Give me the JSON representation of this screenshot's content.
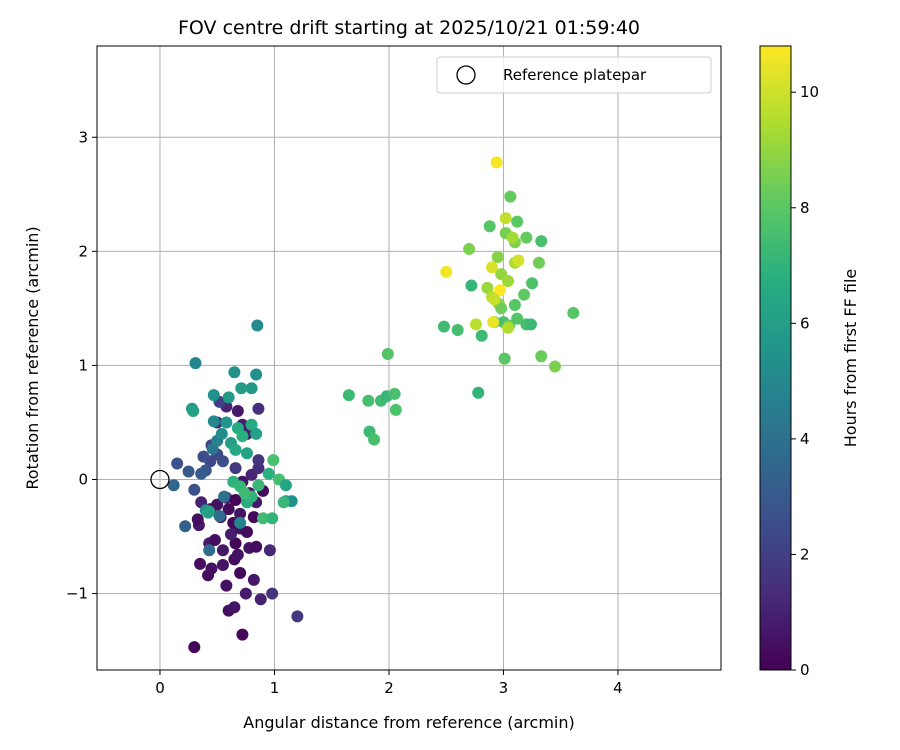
{
  "chart_data": {
    "type": "scatter",
    "title": "FOV centre drift starting at 2025/10/21 01:59:40",
    "xlabel": "Angular distance from reference (arcmin)",
    "ylabel": "Rotation from reference (arcmin)",
    "xlim": [
      -0.55,
      4.9
    ],
    "ylim": [
      -1.67,
      3.8
    ],
    "xticks": [
      0,
      1,
      2,
      3,
      4
    ],
    "yticks": [
      -1,
      0,
      1,
      2,
      3
    ],
    "grid": true,
    "legend": {
      "placement": "top-right",
      "entries": [
        "Reference platepar"
      ]
    },
    "reference_point": {
      "label": "Reference platepar",
      "x": 0,
      "y": 0
    },
    "colorbar": {
      "label": "Hours from first FF file",
      "colormap": "viridis",
      "range": [
        0,
        10.8
      ],
      "ticks": [
        0,
        2,
        4,
        6,
        8,
        10
      ]
    },
    "points": [
      {
        "x": 0.3,
        "y": -1.47,
        "h": 0.1
      },
      {
        "x": 0.72,
        "y": -1.36,
        "h": 0.2
      },
      {
        "x": 0.6,
        "y": -1.15,
        "h": 0.4
      },
      {
        "x": 0.65,
        "y": -1.12,
        "h": 0.6
      },
      {
        "x": 0.88,
        "y": -1.05,
        "h": 1.0
      },
      {
        "x": 0.75,
        "y": -1.0,
        "h": 0.8
      },
      {
        "x": 0.98,
        "y": -1.0,
        "h": 1.6
      },
      {
        "x": 1.2,
        "y": -1.2,
        "h": 1.8
      },
      {
        "x": 0.58,
        "y": -0.93,
        "h": 0.5
      },
      {
        "x": 0.82,
        "y": -0.88,
        "h": 0.7
      },
      {
        "x": 0.42,
        "y": -0.84,
        "h": 0.3
      },
      {
        "x": 0.45,
        "y": -0.78,
        "h": 0.5
      },
      {
        "x": 0.7,
        "y": -0.82,
        "h": 0.2
      },
      {
        "x": 0.35,
        "y": -0.74,
        "h": 0.4
      },
      {
        "x": 0.55,
        "y": -0.75,
        "h": 0.6
      },
      {
        "x": 0.65,
        "y": -0.7,
        "h": 0.3
      },
      {
        "x": 0.68,
        "y": -0.66,
        "h": 0.5
      },
      {
        "x": 0.55,
        "y": -0.62,
        "h": 0.7
      },
      {
        "x": 0.43,
        "y": -0.56,
        "h": 0.8
      },
      {
        "x": 0.48,
        "y": -0.53,
        "h": 0.4
      },
      {
        "x": 0.66,
        "y": -0.56,
        "h": 0.2
      },
      {
        "x": 0.78,
        "y": -0.6,
        "h": 0.6
      },
      {
        "x": 0.84,
        "y": -0.59,
        "h": 0.3
      },
      {
        "x": 0.96,
        "y": -0.62,
        "h": 1.2
      },
      {
        "x": 0.62,
        "y": -0.48,
        "h": 0.9
      },
      {
        "x": 0.7,
        "y": -0.43,
        "h": 0.5
      },
      {
        "x": 0.76,
        "y": -0.46,
        "h": 0.3
      },
      {
        "x": 0.64,
        "y": -0.38,
        "h": 0.2
      },
      {
        "x": 0.34,
        "y": -0.4,
        "h": 0.7
      },
      {
        "x": 0.33,
        "y": -0.35,
        "h": 0.4
      },
      {
        "x": 0.53,
        "y": -0.33,
        "h": 0.8
      },
      {
        "x": 0.6,
        "y": -0.26,
        "h": 0.3
      },
      {
        "x": 0.7,
        "y": -0.3,
        "h": 0.6
      },
      {
        "x": 0.82,
        "y": -0.33,
        "h": 0.2
      },
      {
        "x": 0.5,
        "y": -0.22,
        "h": 0.5
      },
      {
        "x": 0.58,
        "y": -0.16,
        "h": 0.9
      },
      {
        "x": 0.36,
        "y": -0.2,
        "h": 1.0
      },
      {
        "x": 0.44,
        "y": -0.26,
        "h": 0.4
      },
      {
        "x": 0.66,
        "y": -0.18,
        "h": 0.1
      },
      {
        "x": 0.78,
        "y": -0.12,
        "h": 0.5
      },
      {
        "x": 0.84,
        "y": -0.2,
        "h": 0.8
      },
      {
        "x": 0.9,
        "y": -0.1,
        "h": 0.3
      },
      {
        "x": 0.72,
        "y": -0.02,
        "h": 0.6
      },
      {
        "x": 0.8,
        "y": 0.04,
        "h": 1.1
      },
      {
        "x": 0.86,
        "y": 0.1,
        "h": 1.4
      },
      {
        "x": 0.66,
        "y": 0.1,
        "h": 1.8
      },
      {
        "x": 0.86,
        "y": 0.17,
        "h": 1.6
      },
      {
        "x": 0.76,
        "y": 0.4,
        "h": 0.8
      },
      {
        "x": 0.72,
        "y": 0.48,
        "h": 0.9
      },
      {
        "x": 0.58,
        "y": 0.64,
        "h": 1.2
      },
      {
        "x": 0.68,
        "y": 0.6,
        "h": 0.7
      },
      {
        "x": 0.86,
        "y": 0.62,
        "h": 1.5
      },
      {
        "x": 0.52,
        "y": 0.68,
        "h": 2.0
      },
      {
        "x": 0.5,
        "y": 0.5,
        "h": 1.3
      },
      {
        "x": 0.45,
        "y": 0.3,
        "h": 2.2
      },
      {
        "x": 0.5,
        "y": 0.22,
        "h": 2.4
      },
      {
        "x": 0.55,
        "y": 0.16,
        "h": 2.6
      },
      {
        "x": 0.44,
        "y": 0.16,
        "h": 2.3
      },
      {
        "x": 0.38,
        "y": 0.2,
        "h": 2.5
      },
      {
        "x": 0.4,
        "y": 0.08,
        "h": 2.9
      },
      {
        "x": 0.36,
        "y": 0.05,
        "h": 3.1
      },
      {
        "x": 0.15,
        "y": 0.14,
        "h": 2.8
      },
      {
        "x": 0.25,
        "y": 0.07,
        "h": 3.0
      },
      {
        "x": 0.12,
        "y": -0.05,
        "h": 3.6
      },
      {
        "x": 0.3,
        "y": -0.09,
        "h": 2.7
      },
      {
        "x": 0.22,
        "y": -0.41,
        "h": 3.3
      },
      {
        "x": 0.43,
        "y": -0.62,
        "h": 3.8
      },
      {
        "x": 0.52,
        "y": -0.32,
        "h": 3.7
      },
      {
        "x": 0.56,
        "y": -0.15,
        "h": 4.0
      },
      {
        "x": 0.46,
        "y": 0.27,
        "h": 4.2
      },
      {
        "x": 0.5,
        "y": 0.34,
        "h": 4.6
      },
      {
        "x": 0.47,
        "y": 0.51,
        "h": 5.0
      },
      {
        "x": 0.54,
        "y": 0.4,
        "h": 5.2
      },
      {
        "x": 0.47,
        "y": 0.74,
        "h": 5.4
      },
      {
        "x": 0.6,
        "y": 0.72,
        "h": 5.8
      },
      {
        "x": 0.58,
        "y": 0.5,
        "h": 5.6
      },
      {
        "x": 0.62,
        "y": 0.32,
        "h": 6.0
      },
      {
        "x": 0.66,
        "y": 0.26,
        "h": 6.4
      },
      {
        "x": 0.76,
        "y": 0.23,
        "h": 6.2
      },
      {
        "x": 0.68,
        "y": 0.45,
        "h": 6.6
      },
      {
        "x": 0.72,
        "y": 0.38,
        "h": 6.8
      },
      {
        "x": 0.8,
        "y": 0.48,
        "h": 6.5
      },
      {
        "x": 0.84,
        "y": 0.4,
        "h": 6.1
      },
      {
        "x": 0.8,
        "y": 0.8,
        "h": 5.7
      },
      {
        "x": 0.65,
        "y": 0.94,
        "h": 5.5
      },
      {
        "x": 0.71,
        "y": 0.8,
        "h": 5.9
      },
      {
        "x": 0.84,
        "y": 0.92,
        "h": 5.3
      },
      {
        "x": 0.85,
        "y": 1.35,
        "h": 5.1
      },
      {
        "x": 0.31,
        "y": 1.02,
        "h": 4.9
      },
      {
        "x": 0.28,
        "y": 0.62,
        "h": 5.6
      },
      {
        "x": 0.29,
        "y": 0.6,
        "h": 6.2
      },
      {
        "x": 0.4,
        "y": -0.27,
        "h": 5.3
      },
      {
        "x": 0.42,
        "y": -0.29,
        "h": 6.4
      },
      {
        "x": 0.7,
        "y": -0.38,
        "h": 4.8
      },
      {
        "x": 0.76,
        "y": -0.2,
        "h": 6.7
      },
      {
        "x": 0.8,
        "y": -0.15,
        "h": 7.0
      },
      {
        "x": 0.64,
        "y": -0.02,
        "h": 6.9
      },
      {
        "x": 0.7,
        "y": -0.06,
        "h": 7.1
      },
      {
        "x": 0.74,
        "y": -0.12,
        "h": 7.3
      },
      {
        "x": 0.86,
        "y": -0.05,
        "h": 7.2
      },
      {
        "x": 0.9,
        "y": -0.34,
        "h": 7.4
      },
      {
        "x": 0.98,
        "y": -0.34,
        "h": 7.0
      },
      {
        "x": 0.95,
        "y": 0.05,
        "h": 6.8
      },
      {
        "x": 1.04,
        "y": 0.0,
        "h": 7.5
      },
      {
        "x": 1.1,
        "y": -0.05,
        "h": 6.3
      },
      {
        "x": 1.1,
        "y": -0.19,
        "h": 6.0
      },
      {
        "x": 1.15,
        "y": -0.19,
        "h": 5.4
      },
      {
        "x": 0.99,
        "y": 0.17,
        "h": 7.6
      },
      {
        "x": 1.08,
        "y": -0.2,
        "h": 7.2
      },
      {
        "x": 0.43,
        "y": -0.28,
        "h": 6.1
      },
      {
        "x": 1.65,
        "y": 0.74,
        "h": 7.3
      },
      {
        "x": 1.82,
        "y": 0.69,
        "h": 7.5
      },
      {
        "x": 1.93,
        "y": 0.69,
        "h": 7.4
      },
      {
        "x": 1.98,
        "y": 0.73,
        "h": 7.2
      },
      {
        "x": 2.05,
        "y": 0.75,
        "h": 7.6
      },
      {
        "x": 2.06,
        "y": 0.61,
        "h": 7.7
      },
      {
        "x": 1.83,
        "y": 0.42,
        "h": 7.3
      },
      {
        "x": 1.87,
        "y": 0.35,
        "h": 7.6
      },
      {
        "x": 1.99,
        "y": 1.1,
        "h": 7.8
      },
      {
        "x": 2.48,
        "y": 1.34,
        "h": 7.4
      },
      {
        "x": 2.6,
        "y": 1.31,
        "h": 7.5
      },
      {
        "x": 2.72,
        "y": 1.7,
        "h": 7.1
      },
      {
        "x": 2.81,
        "y": 1.26,
        "h": 7.3
      },
      {
        "x": 2.78,
        "y": 0.76,
        "h": 7.0
      },
      {
        "x": 2.92,
        "y": 1.38,
        "h": 7.7
      },
      {
        "x": 3.0,
        "y": 1.38,
        "h": 7.6
      },
      {
        "x": 3.01,
        "y": 1.06,
        "h": 8.0
      },
      {
        "x": 3.05,
        "y": 1.35,
        "h": 8.2
      },
      {
        "x": 3.1,
        "y": 1.53,
        "h": 7.9
      },
      {
        "x": 3.12,
        "y": 1.41,
        "h": 7.8
      },
      {
        "x": 3.2,
        "y": 1.36,
        "h": 7.5
      },
      {
        "x": 3.24,
        "y": 1.36,
        "h": 7.3
      },
      {
        "x": 3.18,
        "y": 1.62,
        "h": 8.1
      },
      {
        "x": 3.25,
        "y": 1.72,
        "h": 7.7
      },
      {
        "x": 3.33,
        "y": 1.08,
        "h": 8.3
      },
      {
        "x": 3.45,
        "y": 0.99,
        "h": 8.6
      },
      {
        "x": 3.61,
        "y": 1.46,
        "h": 7.9
      },
      {
        "x": 3.31,
        "y": 1.9,
        "h": 8.4
      },
      {
        "x": 3.33,
        "y": 2.09,
        "h": 7.6
      },
      {
        "x": 3.2,
        "y": 2.12,
        "h": 8.2
      },
      {
        "x": 3.12,
        "y": 2.26,
        "h": 8.0
      },
      {
        "x": 3.06,
        "y": 2.48,
        "h": 8.2
      },
      {
        "x": 2.88,
        "y": 2.22,
        "h": 7.9
      },
      {
        "x": 3.02,
        "y": 2.16,
        "h": 8.5
      },
      {
        "x": 3.1,
        "y": 2.08,
        "h": 8.7
      },
      {
        "x": 2.7,
        "y": 2.02,
        "h": 8.6
      },
      {
        "x": 2.95,
        "y": 1.95,
        "h": 8.8
      },
      {
        "x": 2.98,
        "y": 1.8,
        "h": 9.0
      },
      {
        "x": 3.04,
        "y": 1.74,
        "h": 9.2
      },
      {
        "x": 3.1,
        "y": 1.9,
        "h": 9.4
      },
      {
        "x": 2.86,
        "y": 1.68,
        "h": 9.1
      },
      {
        "x": 2.9,
        "y": 1.6,
        "h": 9.6
      },
      {
        "x": 2.96,
        "y": 1.54,
        "h": 8.9
      },
      {
        "x": 2.98,
        "y": 1.5,
        "h": 8.4
      },
      {
        "x": 3.08,
        "y": 2.12,
        "h": 9.3
      },
      {
        "x": 3.02,
        "y": 2.29,
        "h": 9.8
      },
      {
        "x": 2.94,
        "y": 2.78,
        "h": 10.7
      },
      {
        "x": 2.5,
        "y": 1.82,
        "h": 10.6
      },
      {
        "x": 2.9,
        "y": 1.86,
        "h": 10.2
      },
      {
        "x": 2.97,
        "y": 1.66,
        "h": 10.8
      },
      {
        "x": 2.91,
        "y": 1.38,
        "h": 10.5
      },
      {
        "x": 2.76,
        "y": 1.36,
        "h": 9.7
      },
      {
        "x": 3.04,
        "y": 1.33,
        "h": 9.5
      },
      {
        "x": 3.13,
        "y": 1.92,
        "h": 10.1
      },
      {
        "x": 2.92,
        "y": 1.58,
        "h": 9.9
      }
    ]
  }
}
